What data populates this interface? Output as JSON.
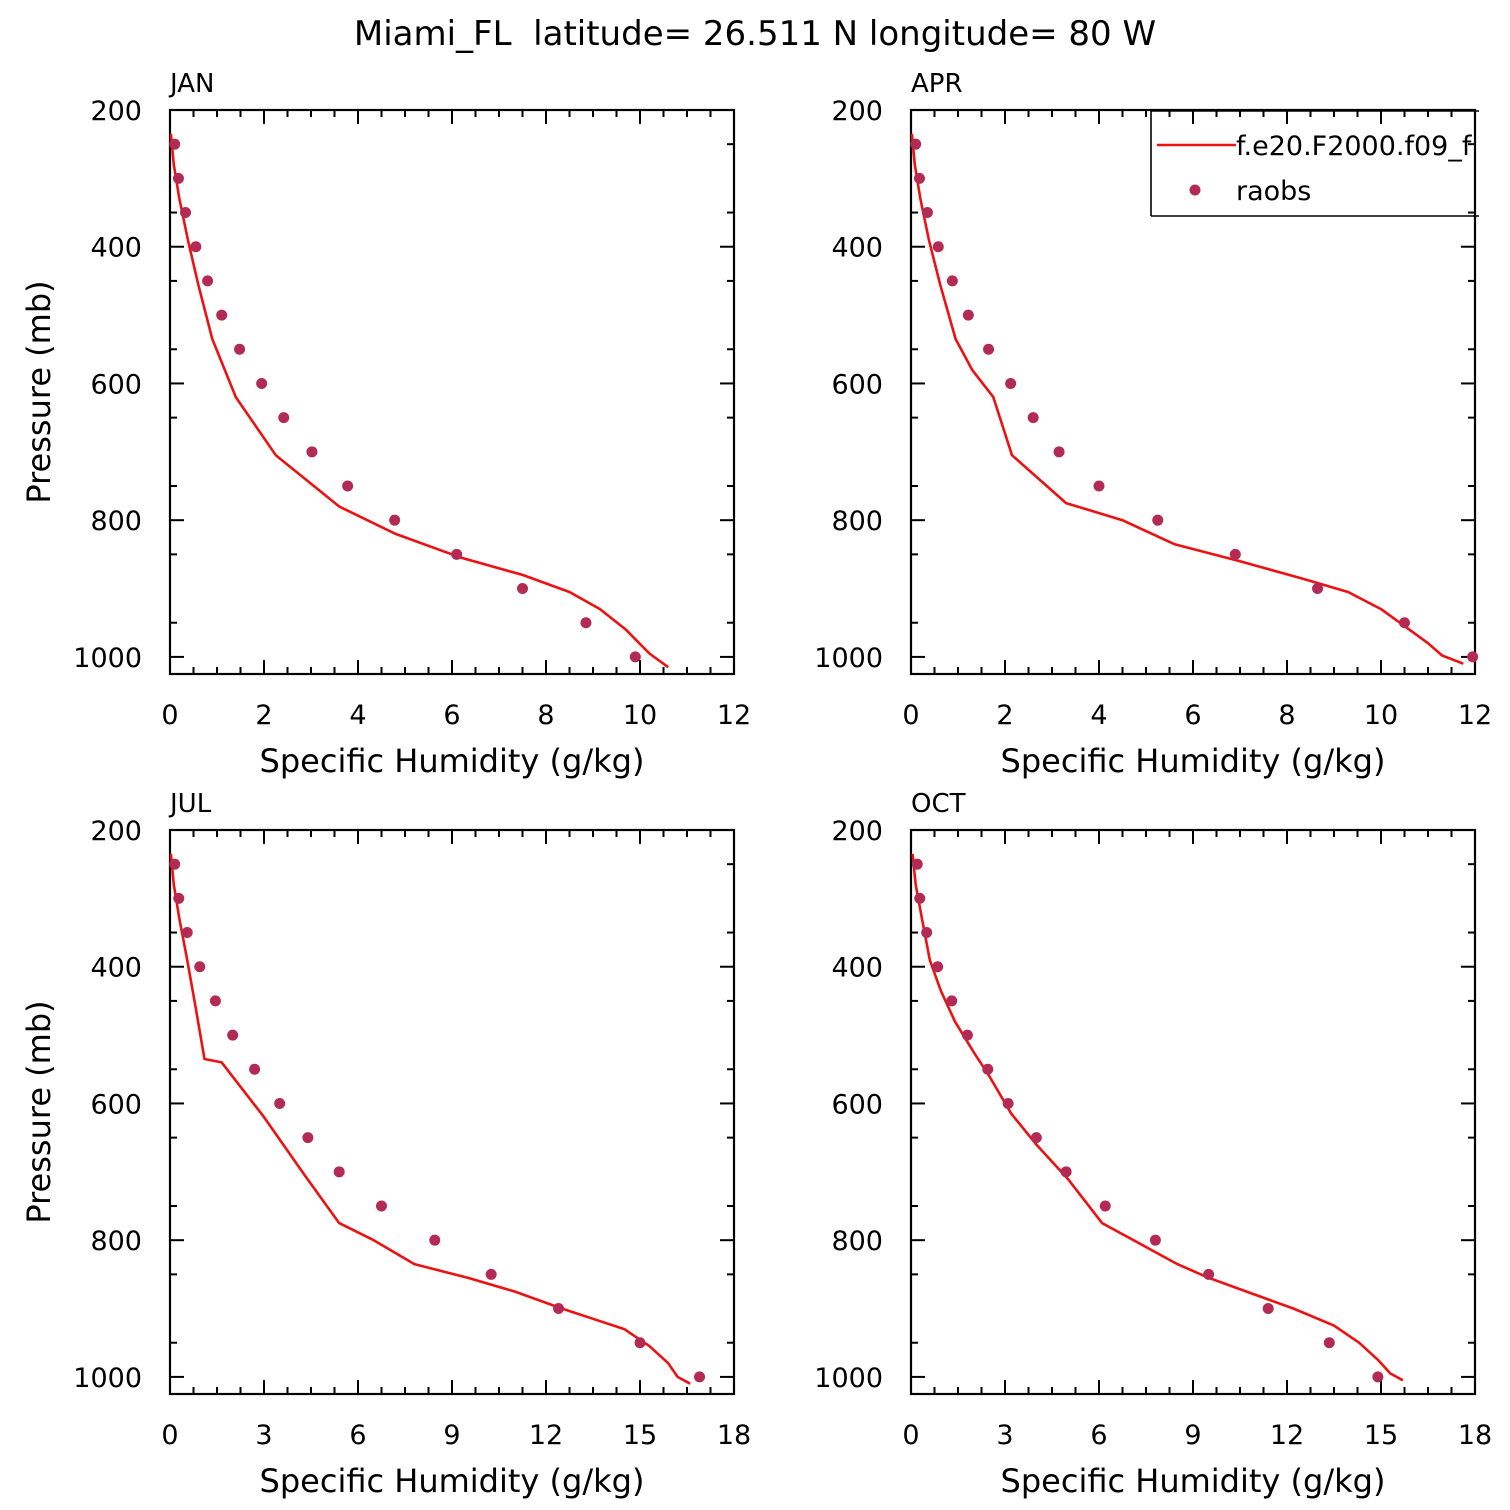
{
  "page_title": "Miami_FL  latitude= 26.511 N longitude= 80 W",
  "legend": {
    "entries": [
      {
        "label": "f.e20.F2000.f09_f",
        "kind": "line",
        "color": "#ee1111"
      },
      {
        "label": "raobs",
        "kind": "marker",
        "color": "#b32a55"
      }
    ]
  },
  "chart_data": [
    {
      "type": "line",
      "title": "JAN",
      "xlabel": "Specific Humidity (g/kg)",
      "ylabel": "Pressure (mb)",
      "xlim": [
        0,
        12
      ],
      "ylim": [
        200,
        1025
      ],
      "y_inverted": true,
      "xticks": [
        "0",
        "2",
        "4",
        "6",
        "8",
        "10",
        "12"
      ],
      "yticks": [
        "200",
        "400",
        "600",
        "800",
        "1000"
      ],
      "series": [
        {
          "name": "f.e20.F2000.f09_f",
          "type": "line",
          "color": "#ee1111",
          "x": [
            0.02,
            0.08,
            0.2,
            0.38,
            0.6,
            0.9,
            1.4,
            2.25,
            3.6,
            4.8,
            6.2,
            7.5,
            8.5,
            9.15,
            9.7,
            10.2,
            10.6
          ],
          "y": [
            235,
            280,
            330,
            390,
            455,
            535,
            620,
            705,
            780,
            820,
            855,
            880,
            905,
            930,
            960,
            995,
            1015
          ]
        },
        {
          "name": "raobs",
          "type": "scatter",
          "color": "#b32a55",
          "x": [
            0.1,
            0.18,
            0.33,
            0.55,
            0.8,
            1.1,
            1.48,
            1.95,
            2.42,
            3.02,
            3.78,
            4.78,
            6.1,
            7.5,
            8.85,
            9.9
          ],
          "y": [
            250,
            300,
            350,
            400,
            450,
            500,
            550,
            600,
            650,
            700,
            750,
            800,
            850,
            900,
            950,
            1000
          ]
        }
      ]
    },
    {
      "type": "line",
      "title": "APR",
      "xlabel": "Specific Humidity (g/kg)",
      "ylabel": "",
      "xlim": [
        0,
        12
      ],
      "ylim": [
        200,
        1025
      ],
      "y_inverted": true,
      "xticks": [
        "0",
        "2",
        "4",
        "6",
        "8",
        "10",
        "12"
      ],
      "yticks": [
        "200",
        "400",
        "600",
        "800",
        "1000"
      ],
      "series": [
        {
          "name": "f.e20.F2000.f09_f",
          "type": "line",
          "color": "#ee1111",
          "x": [
            0.02,
            0.08,
            0.2,
            0.38,
            0.62,
            0.95,
            1.3,
            1.75,
            2.15,
            3.3,
            4.5,
            5.6,
            7.0,
            8.3,
            9.3,
            10.0,
            10.5,
            11.0,
            11.3,
            11.75
          ],
          "y": [
            235,
            280,
            330,
            390,
            455,
            535,
            580,
            620,
            705,
            775,
            800,
            835,
            860,
            885,
            905,
            930,
            955,
            980,
            998,
            1010
          ]
        },
        {
          "name": "raobs",
          "type": "scatter",
          "color": "#b32a55",
          "x": [
            0.1,
            0.18,
            0.35,
            0.58,
            0.88,
            1.22,
            1.65,
            2.12,
            2.6,
            3.15,
            4.0,
            5.25,
            6.9,
            8.65,
            10.5,
            11.95
          ],
          "y": [
            250,
            300,
            350,
            400,
            450,
            500,
            550,
            600,
            650,
            700,
            750,
            800,
            850,
            900,
            950,
            1000
          ]
        }
      ]
    },
    {
      "type": "line",
      "title": "JUL",
      "xlabel": "Specific Humidity (g/kg)",
      "ylabel": "Pressure (mb)",
      "xlim": [
        0,
        18
      ],
      "ylim": [
        200,
        1025
      ],
      "y_inverted": true,
      "xticks": [
        "0",
        "3",
        "6",
        "9",
        "12",
        "15",
        "18"
      ],
      "yticks": [
        "200",
        "400",
        "600",
        "800",
        "1000"
      ],
      "series": [
        {
          "name": "f.e20.F2000.f09_f",
          "type": "line",
          "color": "#ee1111",
          "x": [
            0.03,
            0.12,
            0.3,
            0.55,
            0.8,
            1.1,
            1.65,
            3.0,
            4.3,
            5.4,
            6.5,
            7.8,
            9.5,
            11.0,
            12.5,
            13.5,
            14.5,
            15.3,
            15.9,
            16.2,
            16.6
          ],
          "y": [
            235,
            280,
            330,
            390,
            455,
            535,
            540,
            620,
            705,
            775,
            800,
            835,
            855,
            875,
            900,
            915,
            930,
            955,
            980,
            1000,
            1010
          ]
        },
        {
          "name": "raobs",
          "type": "scatter",
          "color": "#b32a55",
          "x": [
            0.15,
            0.28,
            0.55,
            0.95,
            1.45,
            2.0,
            2.7,
            3.5,
            4.4,
            5.4,
            6.75,
            8.45,
            10.25,
            12.4,
            15.0,
            16.9
          ],
          "y": [
            250,
            300,
            350,
            400,
            450,
            500,
            550,
            600,
            650,
            700,
            750,
            800,
            850,
            900,
            950,
            1000
          ]
        }
      ]
    },
    {
      "type": "line",
      "title": "OCT",
      "xlabel": "Specific Humidity (g/kg)",
      "ylabel": "",
      "xlim": [
        0,
        18
      ],
      "ylim": [
        200,
        1025
      ],
      "y_inverted": true,
      "xticks": [
        "0",
        "3",
        "6",
        "9",
        "12",
        "15",
        "18"
      ],
      "yticks": [
        "200",
        "400",
        "600",
        "800",
        "1000"
      ],
      "series": [
        {
          "name": "f.e20.F2000.f09_f",
          "type": "line",
          "color": "#ee1111",
          "x": [
            0.05,
            0.15,
            0.35,
            0.6,
            0.95,
            1.4,
            2.0,
            2.5,
            3.2,
            4.0,
            5.0,
            6.1,
            7.5,
            8.5,
            9.5,
            10.7,
            12.2,
            13.5,
            14.3,
            14.9,
            15.3,
            15.7
          ],
          "y": [
            235,
            280,
            330,
            390,
            435,
            480,
            525,
            560,
            615,
            660,
            710,
            775,
            810,
            835,
            855,
            875,
            900,
            925,
            950,
            975,
            995,
            1005
          ]
        },
        {
          "name": "raobs",
          "type": "scatter",
          "color": "#b32a55",
          "x": [
            0.2,
            0.28,
            0.5,
            0.85,
            1.3,
            1.8,
            2.45,
            3.1,
            4.0,
            4.95,
            6.2,
            7.8,
            9.5,
            11.4,
            13.35,
            14.9
          ],
          "y": [
            250,
            300,
            350,
            400,
            450,
            500,
            550,
            600,
            650,
            700,
            750,
            800,
            850,
            900,
            950,
            1000
          ]
        }
      ]
    }
  ]
}
